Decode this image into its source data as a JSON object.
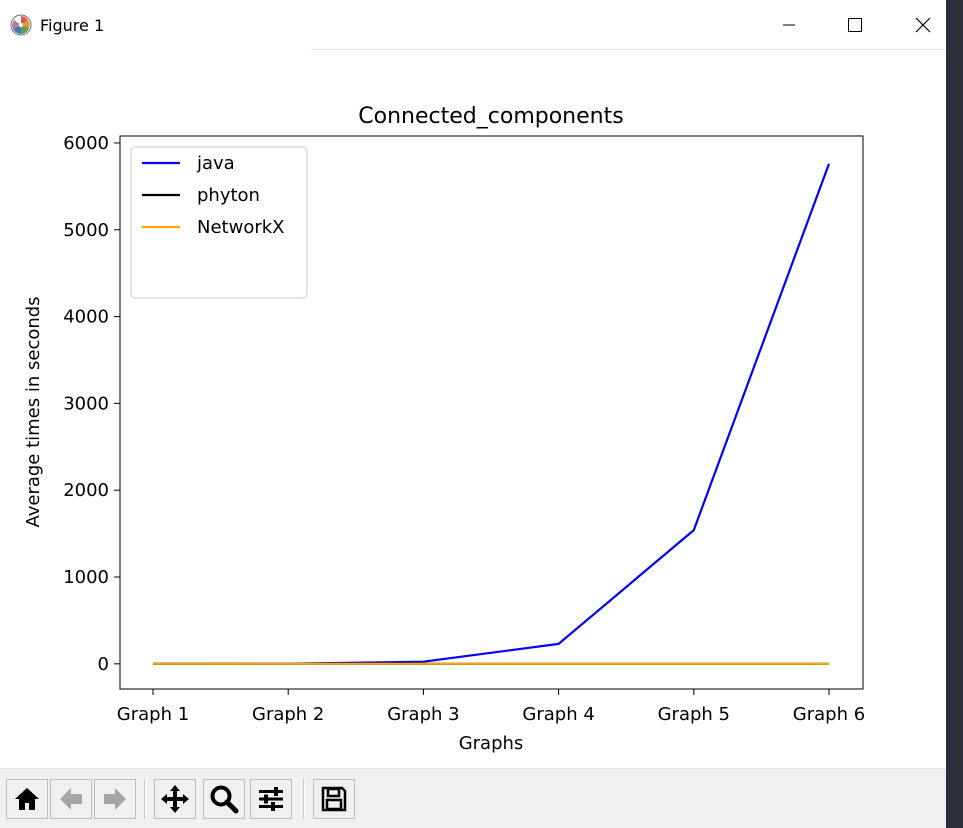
{
  "window": {
    "title": "Figure 1",
    "controls": [
      "minimize",
      "maximize",
      "close"
    ]
  },
  "toolbar": {
    "buttons": [
      "home-icon",
      "back-icon",
      "forward-icon",
      "pan-icon",
      "zoom-icon",
      "configure-subplots-icon",
      "save-icon"
    ]
  },
  "chart_data": {
    "type": "line",
    "title": "Connected_components",
    "xlabel": "Graphs",
    "ylabel": "Average times in seconds",
    "categories": [
      "Graph 1",
      "Graph 2",
      "Graph 3",
      "Graph 4",
      "Graph 5",
      "Graph 6"
    ],
    "yticks": [
      0,
      1000,
      2000,
      3000,
      4000,
      5000,
      6000
    ],
    "ylim": [
      -290,
      6080
    ],
    "series": [
      {
        "name": "java",
        "color": "#0000ff",
        "values": [
          0,
          1,
          25,
          230,
          1540,
          5760
        ]
      },
      {
        "name": "phyton",
        "color": "#000000",
        "values": [
          0,
          0,
          0,
          0,
          0,
          0
        ]
      },
      {
        "name": "NetworkX",
        "color": "#ffa500",
        "values": [
          0,
          0,
          0,
          0,
          0,
          0
        ]
      }
    ],
    "legend": "top-left",
    "grid": false
  }
}
